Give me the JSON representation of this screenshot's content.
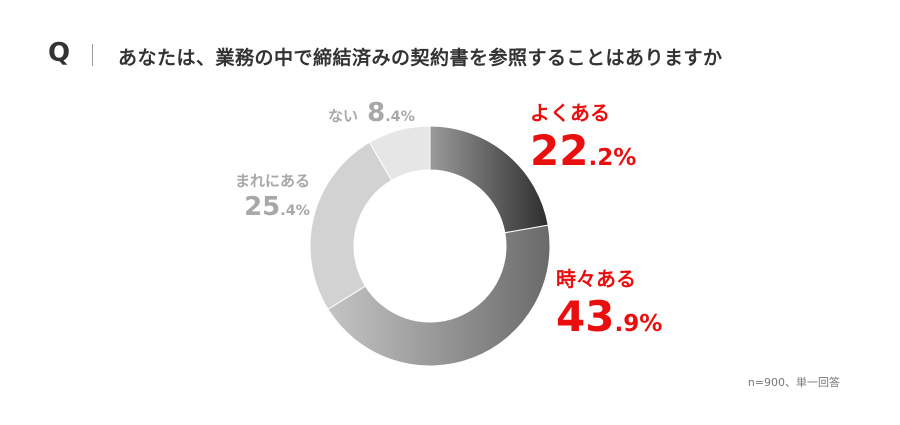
{
  "header": {
    "q_mark": "Q",
    "question": "あなたは、業務の中で締結済みの契約書を参照することはありますか"
  },
  "chart_data": {
    "type": "pie",
    "donut": true,
    "start_angle_deg": 0,
    "direction": "clockwise",
    "slices": [
      {
        "label": "よくある",
        "value": 22.2,
        "int": "22",
        "dec": ".2%",
        "color": "#5a5a5a",
        "label_color": "#ea0f0f"
      },
      {
        "label": "時々ある",
        "value": 43.9,
        "int": "43",
        "dec": ".9%",
        "color": "#8e8e8e",
        "label_color": "#ea0f0f"
      },
      {
        "label": "まれにある",
        "value": 25.4,
        "int": "25",
        "dec": ".4%",
        "color": "#d2d2d2",
        "label_color": "#a8a8a8"
      },
      {
        "label": "ない",
        "value": 8.4,
        "int": "8",
        "dec": ".4%",
        "color": "#e6e6e6",
        "label_color": "#a8a8a8"
      }
    ],
    "legend": "none"
  },
  "footnote": "n=900、単一回答"
}
